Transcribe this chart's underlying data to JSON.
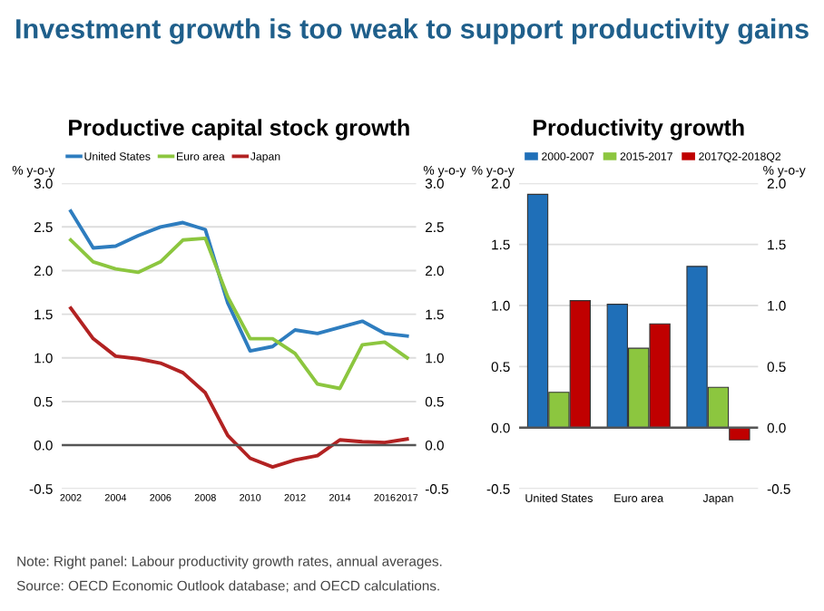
{
  "chart_data": [
    {
      "type": "line",
      "title": "Productive capital stock growth",
      "ylabel": "% y-o-y",
      "y2label": "% y-o-y",
      "annotations": [
        "Investment growth is too weak to support productivity gains"
      ],
      "x": [
        2002,
        2003,
        2004,
        2005,
        2006,
        2007,
        2008,
        2009,
        2010,
        2011,
        2012,
        2013,
        2014,
        2015,
        2016,
        2017
      ],
      "series": [
        {
          "name": "United States",
          "color": "#2e7dbf",
          "values": [
            2.68,
            2.26,
            2.28,
            2.4,
            2.5,
            2.55,
            2.47,
            1.63,
            1.08,
            1.13,
            1.32,
            1.28,
            1.35,
            1.42,
            1.28,
            1.25
          ]
        },
        {
          "name": "Euro area",
          "color": "#8cc63f",
          "values": [
            2.35,
            2.1,
            2.02,
            1.98,
            2.1,
            2.35,
            2.37,
            1.7,
            1.22,
            1.22,
            1.05,
            0.7,
            0.65,
            1.15,
            1.18,
            1.0
          ]
        },
        {
          "name": "Japan",
          "color": "#b22222",
          "values": [
            1.57,
            1.22,
            1.02,
            0.99,
            0.94,
            0.83,
            0.6,
            0.11,
            -0.15,
            -0.25,
            -0.17,
            -0.12,
            0.06,
            0.04,
            0.03,
            0.07
          ]
        }
      ],
      "xlim": [
        2001.6,
        2017.4
      ],
      "xticks": [
        2002,
        2004,
        2006,
        2008,
        2010,
        2012,
        2014,
        2016,
        2017
      ],
      "ylim": [
        -0.5,
        3.0
      ],
      "yticks": [
        {
          "value": -0.5,
          "label": "-0.5"
        },
        {
          "value": 0,
          "label": "0.0"
        },
        {
          "value": 0.5,
          "label": "0.5"
        },
        {
          "value": 1.0,
          "label": "1.0"
        },
        {
          "value": 1.5,
          "label": "1.5"
        },
        {
          "value": 2.0,
          "label": "2.0"
        },
        {
          "value": 2.5,
          "label": "2.5"
        },
        {
          "value": 3.0,
          "label": "3.0"
        }
      ],
      "y2lim": [
        -0.5,
        3.0
      ],
      "y2ticks": [
        {
          "value": -0.5,
          "label": "-0.5"
        },
        {
          "value": 0,
          "label": "0.0"
        },
        {
          "value": 0.5,
          "label": "0.5"
        },
        {
          "value": 1.0,
          "label": "1.0"
        },
        {
          "value": 1.5,
          "label": "1.5"
        },
        {
          "value": 2.0,
          "label": "2.0"
        },
        {
          "value": 2.5,
          "label": "2.5"
        },
        {
          "value": 3.0,
          "label": "3.0"
        }
      ],
      "grid": "y",
      "legend": "top",
      "marker": "none",
      "line_style": "solid"
    },
    {
      "type": "bar",
      "title": "Productivity growth",
      "ylabel": "% y-o-y",
      "y2label": "% y-o-y",
      "annotations": [
        "Note: Right panel: Labour productivity growth rates, annual averages.",
        "Source: OECD Economic Outlook database; and OECD calculations."
      ],
      "categories": [
        "United States",
        "Euro area",
        "Japan"
      ],
      "series": [
        {
          "name": "2000-2007",
          "color": "#1f6fb8",
          "values": [
            1.91,
            1.01,
            1.32
          ]
        },
        {
          "name": "2015-2017",
          "color": "#8cc63f",
          "values": [
            0.29,
            0.65,
            0.33
          ]
        },
        {
          "name": "2017Q2-2018Q2",
          "color": "#c00000",
          "values": [
            1.04,
            0.85,
            -0.1
          ]
        }
      ],
      "ylim": [
        -0.5,
        2.0
      ],
      "yticks": [
        {
          "value": -0.5,
          "label": "-0.5"
        },
        {
          "value": 0,
          "label": "0.0"
        },
        {
          "value": 0.5,
          "label": "0.5"
        },
        {
          "value": 1.0,
          "label": "1.0"
        },
        {
          "value": 1.5,
          "label": "1.5"
        },
        {
          "value": 2.0,
          "label": "2.0"
        }
      ],
      "y2lim": [
        -0.5,
        2.0
      ],
      "y2ticks": [
        {
          "value": -0.5,
          "label": "-0.5"
        },
        {
          "value": 0,
          "label": "0.0"
        },
        {
          "value": 0.5,
          "label": "0.5"
        },
        {
          "value": 1.0,
          "label": "1.0"
        },
        {
          "value": 1.5,
          "label": "1.5"
        },
        {
          "value": 2.0,
          "label": "2.0"
        }
      ],
      "grid": "y",
      "legend": "top"
    }
  ]
}
